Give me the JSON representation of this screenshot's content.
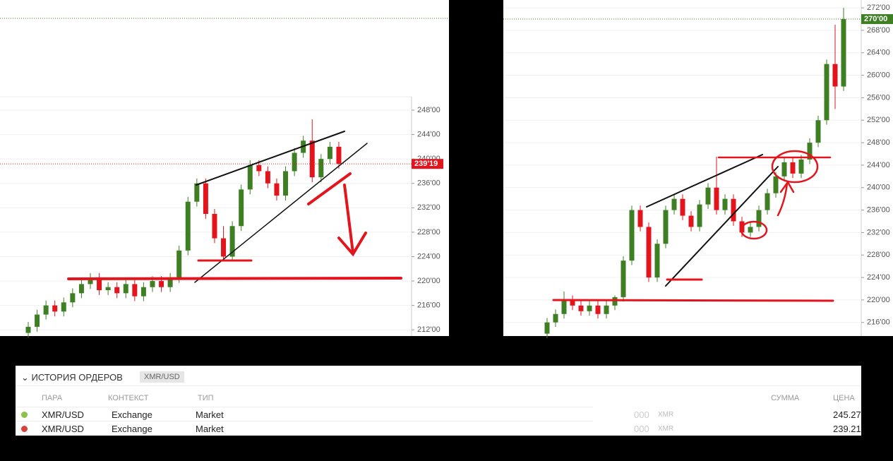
{
  "chart_data": [
    {
      "type": "candlestick",
      "up_color": "#3d7f22",
      "down_color": "#e3141c",
      "ylim": [
        211.1,
        250.2
      ],
      "yticks": [
        {
          "value": 248,
          "label": "248'00"
        },
        {
          "value": 244,
          "label": "244'00"
        },
        {
          "value": 240,
          "label": "240'00"
        },
        {
          "value": 236,
          "label": "236'00"
        },
        {
          "value": 232,
          "label": "232'00"
        },
        {
          "value": 228,
          "label": "228'00"
        },
        {
          "value": 224,
          "label": "224'00"
        },
        {
          "value": 220,
          "label": "220'00"
        },
        {
          "value": 216,
          "label": "216'00"
        },
        {
          "value": 212,
          "label": "212'00"
        }
      ],
      "last_price": {
        "value": 239.19,
        "label": "239'19",
        "color": "#e3141c"
      },
      "open": [
        211.5,
        212.5,
        214.5,
        216,
        215,
        216.5,
        218,
        219.5,
        220.5,
        218.5,
        219,
        218,
        219.5,
        217.5,
        219,
        220,
        219,
        220.5,
        225,
        233,
        236,
        231,
        227,
        224,
        229,
        235,
        239,
        238,
        236,
        234,
        238,
        241,
        243,
        237,
        240,
        242
      ],
      "high": [
        213.3,
        215.3,
        216.8,
        216.8,
        217.3,
        218.8,
        220.3,
        221.3,
        221.3,
        219.8,
        219.8,
        220.3,
        220.3,
        219.8,
        220.8,
        220.8,
        221.3,
        225.8,
        233.8,
        236.8,
        236.8,
        231.8,
        229,
        229.8,
        235.8,
        239.8,
        239.8,
        238.8,
        236.8,
        238.8,
        241.8,
        243.8,
        246.5,
        240.8,
        242.8,
        242.8
      ],
      "low": [
        210.7,
        211.7,
        213.7,
        214.2,
        214.2,
        215.7,
        217.2,
        218.7,
        217.7,
        217.7,
        217.2,
        217.2,
        216.7,
        216.7,
        218.2,
        218.2,
        218.2,
        219.7,
        224.2,
        232.2,
        230.2,
        226.2,
        223.2,
        223.2,
        228.2,
        234.2,
        237.2,
        235.2,
        233.2,
        233.2,
        237.2,
        240.2,
        236.2,
        236.2,
        239.2,
        238.4
      ],
      "close": [
        212.5,
        214.5,
        216,
        215,
        216.5,
        218,
        219.5,
        220.5,
        218.5,
        219,
        218,
        219.5,
        217.5,
        219,
        220,
        219,
        220.5,
        225,
        233,
        236,
        231,
        227,
        224,
        229,
        235,
        239,
        238,
        236,
        234,
        238,
        241,
        243,
        237,
        240,
        242,
        239.2
      ]
    },
    {
      "type": "candlestick",
      "up_color": "#3d7f22",
      "down_color": "#e3141c",
      "ylim": [
        213.7,
        273.4
      ],
      "yticks": [
        {
          "value": 272,
          "label": "272'00"
        },
        {
          "value": 268,
          "label": "268'00"
        },
        {
          "value": 264,
          "label": "264'00"
        },
        {
          "value": 260,
          "label": "260'00"
        },
        {
          "value": 256,
          "label": "256'00"
        },
        {
          "value": 252,
          "label": "252'00"
        },
        {
          "value": 248,
          "label": "248'00"
        },
        {
          "value": 244,
          "label": "244'00"
        },
        {
          "value": 240,
          "label": "240'00"
        },
        {
          "value": 236,
          "label": "236'00"
        },
        {
          "value": 232,
          "label": "232'00"
        },
        {
          "value": 228,
          "label": "228'00"
        },
        {
          "value": 224,
          "label": "224'00"
        },
        {
          "value": 220,
          "label": "220'00"
        },
        {
          "value": 216,
          "label": "216'00"
        }
      ],
      "last_price": {
        "value": 270,
        "label": "270'00",
        "color": "#3d7f22"
      },
      "open": [
        214,
        216,
        217.5,
        220,
        219,
        218,
        219,
        217.5,
        219,
        220.5,
        227,
        236,
        233,
        224,
        230,
        236,
        238,
        235,
        233,
        237,
        240,
        236,
        238,
        234,
        232,
        233,
        236,
        239,
        242,
        244.5,
        242.5,
        245,
        248,
        252,
        262,
        258
      ],
      "high": [
        216.8,
        218.3,
        221.5,
        220.8,
        219.8,
        219.8,
        219.8,
        219.8,
        220.8,
        227.8,
        236.8,
        236.8,
        233.8,
        230.8,
        236.8,
        238.8,
        238.8,
        235.8,
        237.8,
        240.8,
        245.5,
        238.8,
        238.8,
        234.8,
        233.8,
        236.8,
        239.8,
        242.8,
        245.3,
        245.3,
        245.8,
        248.8,
        252.8,
        262.8,
        269,
        272
      ],
      "low": [
        213.2,
        215.2,
        216.7,
        218.2,
        217.2,
        217.2,
        216.7,
        216.7,
        218.2,
        219.7,
        226.2,
        232.2,
        223.2,
        223.2,
        229.2,
        235.2,
        234.2,
        232.2,
        232.2,
        236.2,
        235.2,
        235.2,
        233.2,
        231.2,
        231.2,
        232.2,
        235.2,
        238.2,
        241.2,
        241.7,
        241.7,
        244.2,
        247.2,
        251.2,
        254,
        257.2
      ],
      "close": [
        216,
        217.5,
        220,
        219,
        218,
        219,
        217.5,
        219,
        220.5,
        227,
        236,
        233,
        224,
        230,
        236,
        238,
        235,
        233,
        237,
        240,
        236,
        238,
        234,
        232,
        233,
        236,
        239,
        242,
        244.5,
        242.5,
        245,
        248,
        252,
        262,
        258,
        270
      ]
    }
  ],
  "order_history": {
    "title": "ИСТОРИЯ ОРДЕРОВ",
    "filter": "XMR/USD",
    "columns": [
      "ПАРА",
      "КОНТЕКСТ",
      "ТИП",
      "СУММА",
      "ЦЕНА"
    ],
    "rows": [
      {
        "status_color": "#8bc34a",
        "pair": "XMR/USD",
        "context": "Exchange",
        "type": "Market",
        "amount": "000",
        "unit": "XMR",
        "price": "245.27"
      },
      {
        "status_color": "#d9403a",
        "pair": "XMR/USD",
        "context": "Exchange",
        "type": "Market",
        "amount": "000",
        "unit": "XMR",
        "price": "239.21"
      }
    ]
  }
}
